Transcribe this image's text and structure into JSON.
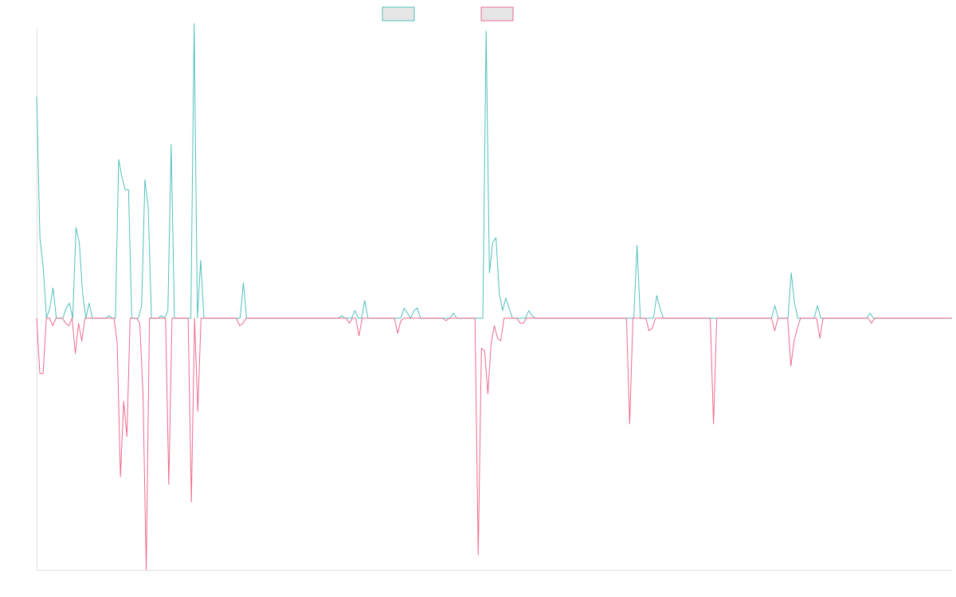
{
  "chart_data": {
    "type": "line",
    "title": "",
    "xlabel": "",
    "ylabel": "",
    "ylim": [
      -1.0,
      1.15
    ],
    "grid": false,
    "legend_position": "top-center",
    "series": [
      {
        "color": "#4fc0bd",
        "values": [
          0.88,
          0.32,
          0.2,
          0,
          0.04,
          0.12,
          0,
          0,
          0,
          0.04,
          0.06,
          0,
          0.36,
          0.3,
          0.1,
          0,
          0.06,
          0,
          0,
          0,
          0,
          0,
          0.01,
          0,
          0,
          0.63,
          0.56,
          0.51,
          0.51,
          0,
          0,
          0,
          0.05,
          0.55,
          0.44,
          0,
          0,
          0,
          0.01,
          0,
          0.03,
          0.69,
          0,
          0,
          0,
          0,
          0,
          0,
          1.17,
          0,
          0.23,
          0,
          0,
          0,
          0,
          0,
          0,
          0,
          0,
          0,
          0,
          0,
          0,
          0.14,
          0,
          0,
          0,
          0,
          0,
          0,
          0,
          0,
          0,
          0,
          0,
          0,
          0,
          0,
          0,
          0,
          0,
          0,
          0,
          0,
          0,
          0,
          0,
          0,
          0,
          0,
          0,
          0,
          0,
          0.01,
          0,
          0,
          0,
          0.03,
          0,
          0,
          0.07,
          0,
          0,
          0,
          0,
          0,
          0,
          0,
          0,
          0,
          0,
          0,
          0.04,
          0.02,
          0,
          0.03,
          0.04,
          0,
          0,
          0,
          0,
          0,
          0,
          0,
          0,
          0,
          0,
          0.02,
          0,
          0,
          0,
          0,
          0,
          0,
          0,
          0,
          0,
          1.14,
          0.18,
          0.3,
          0.32,
          0.1,
          0.03,
          0.08,
          0.04,
          0,
          0,
          0,
          0,
          0,
          0.03,
          0.01,
          0,
          0,
          0,
          0,
          0,
          0,
          0,
          0,
          0,
          0,
          0,
          0,
          0,
          0,
          0,
          0,
          0,
          0,
          0,
          0,
          0,
          0,
          0,
          0,
          0,
          0,
          0,
          0,
          0,
          0,
          0,
          0.29,
          0,
          0,
          0,
          0,
          0,
          0.09,
          0.04,
          0,
          0,
          0,
          0,
          0,
          0,
          0,
          0,
          0,
          0,
          0,
          0,
          0,
          0,
          0,
          0,
          0,
          0,
          0,
          0,
          0,
          0,
          0,
          0,
          0,
          0,
          0,
          0,
          0,
          0,
          0,
          0,
          0,
          0,
          0.05,
          0,
          0,
          0,
          0,
          0.18,
          0.06,
          0,
          0,
          0,
          0,
          0,
          0,
          0.05,
          0,
          0,
          0,
          0,
          0,
          0,
          0,
          0,
          0,
          0,
          0,
          0,
          0,
          0,
          0,
          0.02,
          0,
          0,
          0,
          0,
          0,
          0,
          0,
          0,
          0,
          0,
          0,
          0,
          0,
          0,
          0,
          0,
          0,
          0,
          0,
          0,
          0,
          0,
          0,
          0,
          0
        ]
      },
      {
        "color": "#ee6a8c",
        "values": [
          0,
          -0.22,
          -0.22,
          0,
          0,
          -0.03,
          0,
          0,
          0,
          -0.02,
          -0.03,
          0,
          -0.14,
          -0.02,
          -0.09,
          0,
          0,
          0,
          0,
          0,
          0,
          0,
          0,
          0,
          0,
          -0.1,
          -0.63,
          -0.33,
          -0.47,
          0,
          0,
          0,
          -0.02,
          -0.3,
          -1.0,
          0,
          0,
          0,
          0,
          0,
          0,
          -0.66,
          0,
          0,
          0,
          0,
          0,
          0,
          -0.73,
          0,
          -0.37,
          0,
          0,
          0,
          0,
          0,
          0,
          0,
          0,
          0,
          0,
          0,
          0,
          -0.03,
          -0.02,
          0,
          0,
          0,
          0,
          0,
          0,
          0,
          0,
          0,
          0,
          0,
          0,
          0,
          0,
          0,
          0,
          0,
          0,
          0,
          0,
          0,
          0,
          0,
          0,
          0,
          0,
          0,
          0,
          0,
          0,
          0,
          0,
          -0.02,
          0,
          0,
          -0.07,
          0,
          0,
          0,
          0,
          0,
          0,
          0,
          0,
          0,
          0,
          0,
          -0.06,
          -0.01,
          0,
          0,
          0,
          0,
          0,
          0,
          0,
          0,
          0,
          0,
          0,
          0,
          0,
          -0.01,
          0,
          0,
          0,
          0,
          0,
          0,
          0,
          0,
          0,
          -0.94,
          -0.12,
          -0.13,
          -0.3,
          -0.1,
          -0.03,
          -0.08,
          -0.09,
          0,
          0,
          0,
          0,
          0,
          -0.02,
          -0.02,
          0,
          0,
          0,
          0,
          0,
          0,
          0,
          0,
          0,
          0,
          0,
          0,
          0,
          0,
          0,
          0,
          0,
          0,
          0,
          0,
          0,
          0,
          0,
          0,
          0,
          0,
          0,
          0,
          0,
          0,
          0,
          0,
          -0.42,
          0,
          0,
          0,
          0,
          0,
          -0.05,
          -0.04,
          0,
          0,
          0,
          0,
          0,
          0,
          0,
          0,
          0,
          0,
          0,
          0,
          0,
          0,
          0,
          0,
          0,
          0,
          -0.42,
          0,
          0,
          0,
          0,
          0,
          0,
          0,
          0,
          0,
          0,
          0,
          0,
          0,
          0,
          0,
          0,
          0,
          0,
          -0.05,
          0,
          0,
          0,
          0,
          -0.19,
          -0.09,
          -0.04,
          0,
          0,
          0,
          0,
          0,
          0,
          -0.08,
          0,
          0,
          0,
          0,
          0,
          0,
          0,
          0,
          0,
          0,
          0,
          0,
          0,
          0,
          0,
          -0.02,
          0,
          0,
          0,
          0,
          0,
          0,
          0,
          0,
          0,
          0,
          0,
          0,
          0,
          0,
          0,
          0,
          0,
          0,
          0,
          0,
          0,
          0,
          0,
          0,
          0
        ]
      }
    ]
  }
}
